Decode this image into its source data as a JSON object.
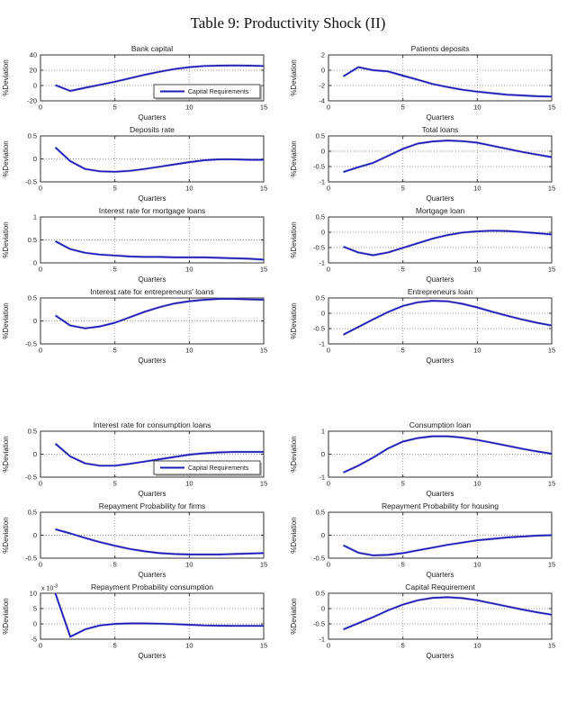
{
  "figure_title": "Table 9: Productivity Shock (II)",
  "colors": {
    "line": "#1c1cb4",
    "line_halo": "#9a9ae0",
    "grid": "#999999",
    "axis": "#333333",
    "text": "#222222",
    "legend_border": "#444444",
    "legend_shadow": "#bbbbbb",
    "background": "#ffffff"
  },
  "legend_label": "Capital Requirements",
  "chart_data": [
    {
      "type": "line",
      "title": "Bank capital",
      "xlabel": "Quarters",
      "ylabel": "%Deviation",
      "xlim": [
        0,
        15
      ],
      "x_ticks": [
        0,
        5,
        10,
        15
      ],
      "ylim": [
        -20,
        40
      ],
      "y_ticks": [
        -20,
        0,
        20,
        40
      ],
      "grid": true,
      "legend": "Capital Requirements",
      "legend_position": "lower-right",
      "x": [
        1,
        2,
        3,
        4,
        5,
        6,
        7,
        8,
        9,
        10,
        11,
        12,
        13,
        14,
        15
      ],
      "values": [
        0.5,
        -7,
        -3,
        1,
        5,
        9.5,
        14,
        18,
        21.5,
        24,
        25.5,
        26,
        26.2,
        26,
        25.5
      ]
    },
    {
      "type": "line",
      "title": "Patients deposits",
      "xlabel": "Quarters",
      "ylabel": "%Deviation",
      "xlim": [
        0,
        15
      ],
      "x_ticks": [
        0,
        5,
        10,
        15
      ],
      "ylim": [
        -4,
        2
      ],
      "y_ticks": [
        -4,
        -2,
        0,
        2
      ],
      "grid": true,
      "x": [
        1,
        2,
        3,
        4,
        5,
        6,
        7,
        8,
        9,
        10,
        11,
        12,
        13,
        14,
        15
      ],
      "values": [
        -0.8,
        0.4,
        0,
        -0.15,
        -0.7,
        -1.25,
        -1.8,
        -2.2,
        -2.55,
        -2.8,
        -3.0,
        -3.2,
        -3.3,
        -3.4,
        -3.45
      ]
    },
    {
      "type": "line",
      "title": "Deposits rate",
      "xlabel": "Quarters",
      "ylabel": "%Deviation",
      "xlim": [
        0,
        15
      ],
      "x_ticks": [
        0,
        5,
        10,
        15
      ],
      "ylim": [
        -0.5,
        0.5
      ],
      "y_ticks": [
        -0.5,
        0,
        0.5
      ],
      "grid": true,
      "x": [
        1,
        2,
        3,
        4,
        5,
        6,
        7,
        8,
        9,
        10,
        11,
        12,
        13,
        14,
        15
      ],
      "values": [
        0.25,
        -0.05,
        -0.22,
        -0.27,
        -0.28,
        -0.26,
        -0.22,
        -0.17,
        -0.12,
        -0.07,
        -0.03,
        -0.01,
        -0.01,
        -0.02,
        -0.02
      ]
    },
    {
      "type": "line",
      "title": "Total loans",
      "xlabel": "Quarters",
      "ylabel": "%Deviation",
      "xlim": [
        0,
        15
      ],
      "x_ticks": [
        0,
        5,
        10,
        15
      ],
      "ylim": [
        -1,
        0.5
      ],
      "y_ticks": [
        -1,
        -0.5,
        0,
        0.5
      ],
      "grid": true,
      "x": [
        1,
        2,
        3,
        4,
        5,
        6,
        7,
        8,
        9,
        10,
        11,
        12,
        13,
        14,
        15
      ],
      "values": [
        -0.68,
        -0.52,
        -0.38,
        -0.15,
        0.08,
        0.25,
        0.32,
        0.35,
        0.33,
        0.28,
        0.18,
        0.08,
        -0.02,
        -0.11,
        -0.19
      ]
    },
    {
      "type": "line",
      "title": "Interest rate for mortgage loans",
      "xlabel": "Quarters",
      "ylabel": "%Deviation",
      "xlim": [
        0,
        15
      ],
      "x_ticks": [
        0,
        5,
        10,
        15
      ],
      "ylim": [
        0,
        1
      ],
      "y_ticks": [
        0,
        0.5,
        1
      ],
      "grid": true,
      "x": [
        1,
        2,
        3,
        4,
        5,
        6,
        7,
        8,
        9,
        10,
        11,
        12,
        13,
        14,
        15
      ],
      "values": [
        0.47,
        0.3,
        0.22,
        0.18,
        0.16,
        0.14,
        0.13,
        0.13,
        0.12,
        0.12,
        0.12,
        0.11,
        0.1,
        0.09,
        0.07
      ]
    },
    {
      "type": "line",
      "title": "Mortgage loan",
      "xlabel": "Quarters",
      "ylabel": "%Deviation",
      "xlim": [
        0,
        15
      ],
      "x_ticks": [
        0,
        5,
        10,
        15
      ],
      "ylim": [
        -1,
        0.5
      ],
      "y_ticks": [
        -1,
        -0.5,
        0,
        0.5
      ],
      "grid": true,
      "x": [
        1,
        2,
        3,
        4,
        5,
        6,
        7,
        8,
        9,
        10,
        11,
        12,
        13,
        14,
        15
      ],
      "values": [
        -0.47,
        -0.66,
        -0.75,
        -0.66,
        -0.51,
        -0.36,
        -0.21,
        -0.09,
        -0.01,
        0.03,
        0.05,
        0.04,
        0.01,
        -0.03,
        -0.07
      ]
    },
    {
      "type": "line",
      "title": "Interest rate for entrepreneurs' loans",
      "xlabel": "Quarters",
      "ylabel": "%Deviation",
      "xlim": [
        0,
        15
      ],
      "x_ticks": [
        0,
        5,
        10,
        15
      ],
      "ylim": [
        -0.5,
        0.5
      ],
      "y_ticks": [
        -0.5,
        0,
        0.5
      ],
      "grid": true,
      "x": [
        1,
        2,
        3,
        4,
        5,
        6,
        7,
        8,
        9,
        10,
        11,
        12,
        13,
        14,
        15
      ],
      "values": [
        0.12,
        -0.1,
        -0.16,
        -0.12,
        -0.04,
        0.08,
        0.2,
        0.3,
        0.38,
        0.43,
        0.46,
        0.48,
        0.48,
        0.47,
        0.46
      ]
    },
    {
      "type": "line",
      "title": "Entrepreneurs loan",
      "xlabel": "Quarters",
      "ylabel": "%Deviation",
      "xlim": [
        0,
        15
      ],
      "x_ticks": [
        0,
        5,
        10,
        15
      ],
      "ylim": [
        -1,
        0.5
      ],
      "y_ticks": [
        -1,
        -0.5,
        0,
        0.5
      ],
      "grid": true,
      "x": [
        1,
        2,
        3,
        4,
        5,
        6,
        7,
        8,
        9,
        10,
        11,
        12,
        13,
        14,
        15
      ],
      "values": [
        -0.7,
        -0.45,
        -0.2,
        0.04,
        0.24,
        0.36,
        0.41,
        0.39,
        0.31,
        0.19,
        0.05,
        -0.08,
        -0.2,
        -0.31,
        -0.4
      ]
    },
    {
      "type": "line",
      "title": "Interest rate for consumption loans",
      "xlabel": "Quarters",
      "ylabel": "%Deviation",
      "xlim": [
        0,
        15
      ],
      "x_ticks": [
        0,
        5,
        10,
        15
      ],
      "ylim": [
        -0.5,
        0.5
      ],
      "y_ticks": [
        -0.5,
        0,
        0.5
      ],
      "grid": true,
      "legend": "Capital Requirements",
      "legend_position": "lower-right",
      "x": [
        1,
        2,
        3,
        4,
        5,
        6,
        7,
        8,
        9,
        10,
        11,
        12,
        13,
        14,
        15
      ],
      "values": [
        0.23,
        -0.05,
        -0.2,
        -0.25,
        -0.25,
        -0.21,
        -0.16,
        -0.11,
        -0.06,
        -0.01,
        0.02,
        0.04,
        0.05,
        0.05,
        0.05
      ]
    },
    {
      "type": "line",
      "title": "Consumption loan",
      "xlabel": "Quarters",
      "ylabel": "%Deviation",
      "xlim": [
        0,
        15
      ],
      "x_ticks": [
        0,
        5,
        10,
        15
      ],
      "ylim": [
        -1,
        1
      ],
      "y_ticks": [
        -1,
        0,
        1
      ],
      "grid": true,
      "x": [
        1,
        2,
        3,
        4,
        5,
        6,
        7,
        8,
        9,
        10,
        11,
        12,
        13,
        14,
        15
      ],
      "values": [
        -0.8,
        -0.5,
        -0.15,
        0.25,
        0.55,
        0.7,
        0.78,
        0.78,
        0.72,
        0.62,
        0.5,
        0.37,
        0.24,
        0.12,
        0.02
      ]
    },
    {
      "type": "line",
      "title": "Repayment Probability for firms",
      "xlabel": "Quarters",
      "ylabel": "%Deviation",
      "xlim": [
        0,
        15
      ],
      "x_ticks": [
        0,
        5,
        10,
        15
      ],
      "ylim": [
        -0.5,
        0.5
      ],
      "y_ticks": [
        -0.5,
        0,
        0.5
      ],
      "grid": true,
      "x": [
        1,
        2,
        3,
        4,
        5,
        6,
        7,
        8,
        9,
        10,
        11,
        12,
        13,
        14,
        15
      ],
      "values": [
        0.13,
        0.04,
        -0.06,
        -0.15,
        -0.23,
        -0.3,
        -0.35,
        -0.39,
        -0.41,
        -0.42,
        -0.42,
        -0.42,
        -0.41,
        -0.4,
        -0.39
      ]
    },
    {
      "type": "line",
      "title": "Repayment Probability for housing",
      "xlabel": "Quarters",
      "ylabel": "%Deviation",
      "xlim": [
        0,
        15
      ],
      "x_ticks": [
        0,
        5,
        10,
        15
      ],
      "ylim": [
        -0.5,
        0.5
      ],
      "y_ticks": [
        -0.5,
        0,
        0.5
      ],
      "grid": true,
      "x": [
        1,
        2,
        3,
        4,
        5,
        6,
        7,
        8,
        9,
        10,
        11,
        12,
        13,
        14,
        15
      ],
      "values": [
        -0.22,
        -0.38,
        -0.44,
        -0.43,
        -0.39,
        -0.33,
        -0.27,
        -0.21,
        -0.16,
        -0.11,
        -0.08,
        -0.05,
        -0.03,
        -0.01,
        0
      ]
    },
    {
      "type": "line",
      "title": "Repayment Probability consumption",
      "xlabel": "Quarters",
      "ylabel": "%Deviation",
      "xlim": [
        0,
        15
      ],
      "x_ticks": [
        0,
        5,
        10,
        15
      ],
      "ylim": [
        -5,
        10
      ],
      "y_ticks": [
        -5,
        0,
        5,
        10
      ],
      "y_multiplier_base": "x 10",
      "y_multiplier_exp": "-3",
      "grid": true,
      "x": [
        1,
        2,
        3,
        4,
        5,
        6,
        7,
        8,
        9,
        10,
        11,
        12,
        13,
        14,
        15
      ],
      "values": [
        10,
        -4.2,
        -1.8,
        -0.5,
        0,
        0.15,
        0.15,
        0.05,
        -0.1,
        -0.3,
        -0.5,
        -0.6,
        -0.65,
        -0.65,
        -0.65
      ]
    },
    {
      "type": "line",
      "title": "Capital Requirement",
      "xlabel": "Quarters",
      "ylabel": "%Deviation",
      "xlim": [
        0,
        15
      ],
      "x_ticks": [
        0,
        5,
        10,
        15
      ],
      "ylim": [
        -1,
        0.5
      ],
      "y_ticks": [
        -1,
        -0.5,
        0,
        0.5
      ],
      "grid": true,
      "x": [
        1,
        2,
        3,
        4,
        5,
        6,
        7,
        8,
        9,
        10,
        11,
        12,
        13,
        14,
        15
      ],
      "values": [
        -0.68,
        -0.48,
        -0.28,
        -0.06,
        0.13,
        0.27,
        0.35,
        0.37,
        0.34,
        0.27,
        0.17,
        0.07,
        -0.03,
        -0.12,
        -0.2
      ]
    }
  ]
}
